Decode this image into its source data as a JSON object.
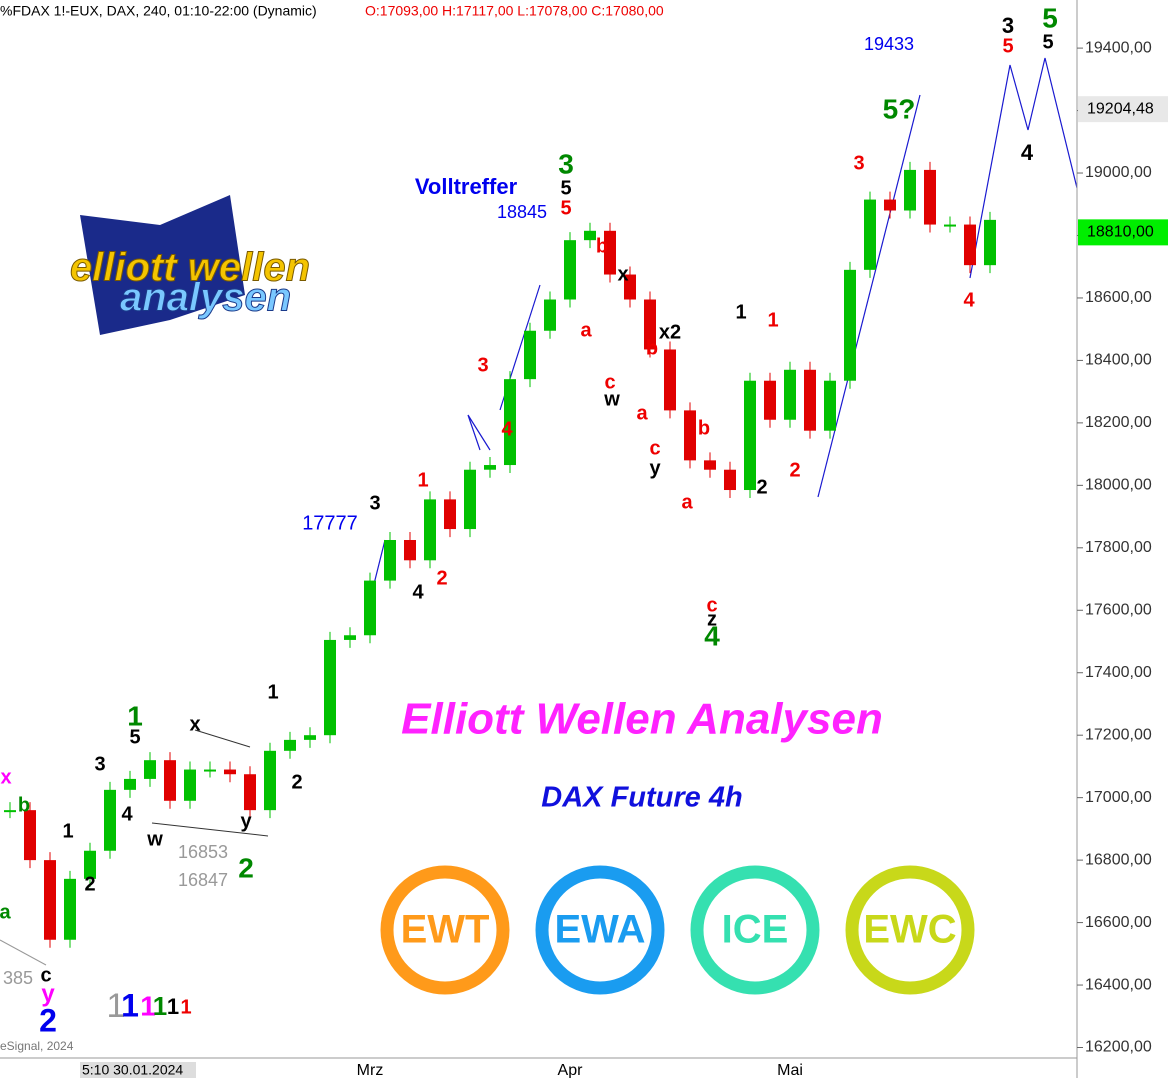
{
  "chart_data": {
    "type": "candlestick",
    "header": {
      "symbol": "%FDAX 1!-EUX, DAX, 240, 01:10-22:00 (Dynamic)",
      "ohlc": "O:17093,00 H:17117,00 L:17078,00 C:17080,00"
    },
    "categories": [
      null,
      null,
      null,
      null,
      null,
      null,
      null,
      null,
      null,
      null,
      null,
      null,
      null,
      null,
      null,
      null,
      null,
      null,
      "Mrz",
      null,
      null,
      null,
      null,
      null,
      null,
      null,
      null,
      null,
      "Apr",
      null,
      null,
      null,
      null,
      null,
      null,
      null,
      null,
      null,
      null,
      "Mai",
      null,
      null,
      null,
      null,
      null,
      null,
      null,
      null,
      null,
      null
    ],
    "values": [
      16960,
      16800,
      16545,
      16740,
      16830,
      17025,
      17060,
      17120,
      16990,
      17090,
      17090,
      17075,
      16960,
      17150,
      17185,
      17200,
      17505,
      17520,
      17695,
      17825,
      17760,
      17955,
      17860,
      18050,
      18065,
      18340,
      18495,
      18595,
      18785,
      18815,
      18675,
      18595,
      18435,
      18240,
      18080,
      18050,
      17985,
      18335,
      18210,
      18370,
      18175,
      18335,
      18690,
      18915,
      18880,
      19010,
      18835,
      18835,
      18705,
      18850
    ],
    "up_color": "#00c000",
    "down_color": "#e00000",
    "ylim": [
      16160,
      19554
    ],
    "yticks": [
      {
        "value": 16200,
        "label": "16200,00"
      },
      {
        "value": 16400,
        "label": "16400,00"
      },
      {
        "value": 16600,
        "label": "16600,00"
      },
      {
        "value": 16800,
        "label": "16800,00"
      },
      {
        "value": 17000,
        "label": "17000,00"
      },
      {
        "value": 17200,
        "label": "17200,00"
      },
      {
        "value": 17400,
        "label": "17400,00"
      },
      {
        "value": 17600,
        "label": "17600,00"
      },
      {
        "value": 17800,
        "label": "17800,00"
      },
      {
        "value": 18000,
        "label": "18000,00"
      },
      {
        "value": 18200,
        "label": "18200,00"
      },
      {
        "value": 18400,
        "label": "18400,00"
      },
      {
        "value": 18600,
        "label": "18600,00"
      },
      {
        "value": 18800,
        "label": "18800,00"
      },
      {
        "value": 19000,
        "label": "19000,00"
      },
      {
        "value": 19200,
        "label": "19200,00"
      },
      {
        "value": 19400,
        "label": "19400,00"
      }
    ],
    "price_markers": [
      {
        "value": 19204.48,
        "label": "19204,48",
        "color": "#e8e8e8"
      },
      {
        "value": 18810,
        "label": "18810,00",
        "color": "#00ee00"
      }
    ],
    "cursor_label": "5:10 30.01.2024",
    "copyright": "eSignal, 2024",
    "annotations": [
      {
        "text": "x",
        "color": "#ff00ff"
      },
      {
        "text": "b",
        "color": "#008800"
      },
      {
        "text": "a",
        "color": "#008800"
      },
      {
        "text": "c",
        "color": "#000000"
      },
      {
        "text": "y",
        "color": "#ff00ff"
      },
      {
        "text": "2",
        "color": "#0000ee"
      },
      {
        "text": "385",
        "color": "#999999"
      },
      {
        "text": "1",
        "color": "#000000"
      },
      {
        "text": "2",
        "color": "#000000"
      },
      {
        "text": "3",
        "color": "#000000"
      },
      {
        "text": "4",
        "color": "#000000"
      },
      {
        "text": "5",
        "color": "#000000"
      },
      {
        "text": "1",
        "color": "#008800"
      },
      {
        "text": "w",
        "color": "#000000"
      },
      {
        "text": "x",
        "color": "#000000"
      },
      {
        "text": "y",
        "color": "#000000"
      },
      {
        "text": "2",
        "color": "#008800"
      },
      {
        "text": "16853",
        "color": "#999999"
      },
      {
        "text": "16847",
        "color": "#999999"
      },
      {
        "text": "1",
        "color": "#000000"
      },
      {
        "text": "2",
        "color": "#000000"
      },
      {
        "text": "17777",
        "color": "#0000ee"
      },
      {
        "text": "3",
        "color": "#000000"
      },
      {
        "text": "4",
        "color": "#000000"
      },
      {
        "text": "1",
        "color": "#ee0000"
      },
      {
        "text": "2",
        "color": "#ee0000"
      },
      {
        "text": "3",
        "color": "#ee0000"
      },
      {
        "text": "4",
        "color": "#ee0000"
      },
      {
        "text": "Volltreffer",
        "color": "#0000ee"
      },
      {
        "text": "18845",
        "color": "#0000ee"
      },
      {
        "text": "3",
        "color": "#008800"
      },
      {
        "text": "5",
        "color": "#000000"
      },
      {
        "text": "5",
        "color": "#ee0000"
      },
      {
        "text": "b",
        "color": "#ee0000"
      },
      {
        "text": "a",
        "color": "#ee0000"
      },
      {
        "text": "x",
        "color": "#000000"
      },
      {
        "text": "c",
        "color": "#ee0000"
      },
      {
        "text": "w",
        "color": "#000000"
      },
      {
        "text": "x2",
        "color": "#000000"
      },
      {
        "text": "b",
        "color": "#ee0000"
      },
      {
        "text": "a",
        "color": "#ee0000"
      },
      {
        "text": "c",
        "color": "#ee0000"
      },
      {
        "text": "y",
        "color": "#000000"
      },
      {
        "text": "b",
        "color": "#ee0000"
      },
      {
        "text": "a",
        "color": "#ee0000"
      },
      {
        "text": "c",
        "color": "#ee0000"
      },
      {
        "text": "z",
        "color": "#000000"
      },
      {
        "text": "4",
        "color": "#008800"
      },
      {
        "text": "1",
        "color": "#000000"
      },
      {
        "text": "2",
        "color": "#000000"
      },
      {
        "text": "1",
        "color": "#ee0000"
      },
      {
        "text": "2",
        "color": "#ee0000"
      },
      {
        "text": "3",
        "color": "#ee0000"
      },
      {
        "text": "5?",
        "color": "#008800"
      },
      {
        "text": "19433",
        "color": "#0000ee"
      },
      {
        "text": "3",
        "color": "#000000"
      },
      {
        "text": "5",
        "color": "#ee0000"
      },
      {
        "text": "5",
        "color": "#008800"
      },
      {
        "text": "5",
        "color": "#000000"
      },
      {
        "text": "4",
        "color": "#000000"
      },
      {
        "text": "4",
        "color": "#ee0000"
      },
      {
        "text": "1",
        "color": "#999999"
      },
      {
        "text": "1",
        "color": "#0000ee"
      },
      {
        "text": "1",
        "color": "#ff00ff"
      },
      {
        "text": "1",
        "color": "#008800"
      },
      {
        "text": "1",
        "color": "#000000"
      },
      {
        "text": "1",
        "color": "#ee0000"
      }
    ],
    "headline": "Elliott Wellen Analysen",
    "subheadline": "DAX Future 4h",
    "logo": [
      "elliott wellen",
      "analysen"
    ],
    "badges": [
      {
        "text": "EWT",
        "color": "#ff9a1a"
      },
      {
        "text": "EWA",
        "color": "#1a9cf0"
      },
      {
        "text": "ICE",
        "color": "#35e0b0"
      },
      {
        "text": "EWC",
        "color": "#c8d81a"
      }
    ]
  }
}
